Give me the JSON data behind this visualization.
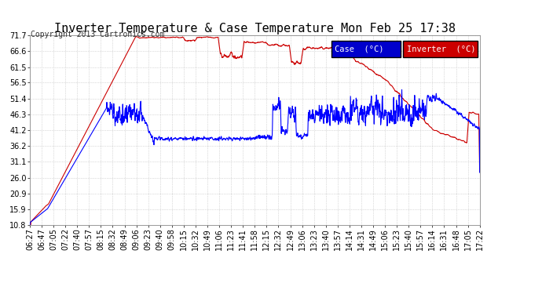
{
  "title": "Inverter Temperature & Case Temperature Mon Feb 25 17:38",
  "copyright": "Copyright 2013 Cartronics.com",
  "legend_case_label": "Case  (°C)",
  "legend_inverter_label": "Inverter  (°C)",
  "case_color": "#0000FF",
  "inverter_color": "#CC0000",
  "legend_case_bg": "#0000CC",
  "legend_inverter_bg": "#CC0000",
  "background_color": "#FFFFFF",
  "plot_bg_color": "#FFFFFF",
  "grid_color": "#BBBBBB",
  "y_ticks": [
    10.8,
    15.9,
    20.9,
    26.0,
    31.1,
    36.2,
    41.2,
    46.3,
    51.4,
    56.5,
    61.5,
    66.6,
    71.7
  ],
  "x_tick_labels": [
    "06:27",
    "06:47",
    "07:05",
    "07:22",
    "07:40",
    "07:57",
    "08:15",
    "08:32",
    "08:49",
    "09:06",
    "09:23",
    "09:40",
    "09:58",
    "10:15",
    "10:32",
    "10:49",
    "11:06",
    "11:23",
    "11:41",
    "11:58",
    "12:15",
    "12:32",
    "12:49",
    "13:06",
    "13:23",
    "13:40",
    "13:57",
    "14:14",
    "14:31",
    "14:49",
    "15:06",
    "15:23",
    "15:40",
    "15:57",
    "16:14",
    "16:31",
    "16:48",
    "17:05",
    "17:22"
  ],
  "ylim_min": 10.8,
  "ylim_max": 71.7,
  "title_fontsize": 11,
  "axis_fontsize": 7,
  "copyright_fontsize": 7
}
